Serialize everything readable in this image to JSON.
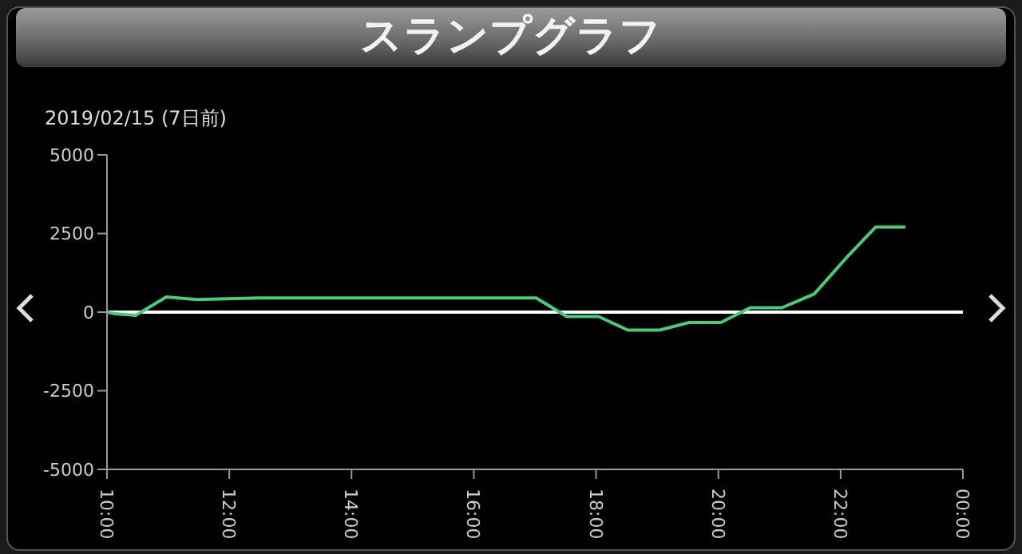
{
  "chart_data": {
    "type": "line",
    "title": "スランプグラフ",
    "subtitle": "2019/02/15 (7日前)",
    "x": [
      10,
      10.13,
      10.47,
      10.97,
      11.47,
      12.5,
      17.02,
      17.52,
      18.04,
      18.52,
      19.04,
      19.52,
      20.04,
      20.52,
      21.04,
      21.57,
      22.09,
      22.57,
      23.06
    ],
    "series": [
      {
        "color": "#4cc97a",
        "values": [
          0,
          -50,
          -100,
          480,
          400,
          450,
          450,
          -140,
          -140,
          -570,
          -570,
          -330,
          -330,
          140,
          140,
          580,
          1720,
          2700,
          2700
        ]
      }
    ],
    "xlim": [
      10,
      24
    ],
    "xticks": [
      {
        "value": 10,
        "label": "10:00"
      },
      {
        "value": 12,
        "label": "12:00"
      },
      {
        "value": 14,
        "label": "14:00"
      },
      {
        "value": 16,
        "label": "16:00"
      },
      {
        "value": 18,
        "label": "18:00"
      },
      {
        "value": 20,
        "label": "20:00"
      },
      {
        "value": 22,
        "label": "22:00"
      },
      {
        "value": 24,
        "label": "00:00"
      }
    ],
    "ylim": [
      -5000,
      5000
    ],
    "yticks": [
      5000,
      2500,
      0,
      -2500,
      -5000
    ],
    "ref_lines": [
      {
        "axis": "y",
        "value": 0,
        "color": "#ffffff"
      }
    ],
    "grid": false,
    "legend": false,
    "marker": "none",
    "line_style": "solid"
  }
}
